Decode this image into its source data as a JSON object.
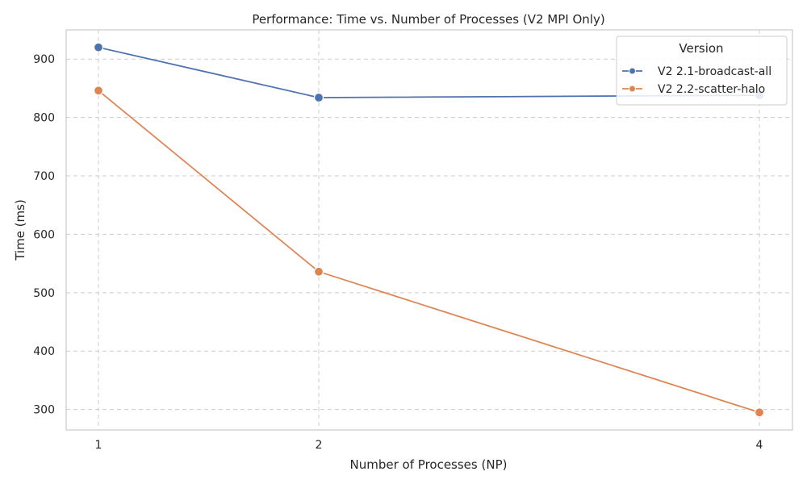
{
  "chart_data": {
    "type": "line",
    "title": "Performance: Time vs. Number of Processes (V2 MPI Only)",
    "xlabel": "Number of Processes (NP)",
    "ylabel": "Time (ms)",
    "x": [
      1,
      2,
      4
    ],
    "x_ticks": [
      "1",
      "2",
      "4"
    ],
    "y_ticks": [
      300,
      400,
      500,
      600,
      700,
      800,
      900
    ],
    "ylim": [
      265,
      950
    ],
    "grid": true,
    "legend": {
      "title": "Version",
      "placement": "top-right"
    },
    "series": [
      {
        "name": "V2 2.1-broadcast-all",
        "color": "#4c72b0",
        "values": [
          920,
          834,
          838
        ]
      },
      {
        "name": "V2 2.2-scatter-halo",
        "color": "#dd8452",
        "values": [
          846,
          536,
          295
        ]
      }
    ]
  }
}
